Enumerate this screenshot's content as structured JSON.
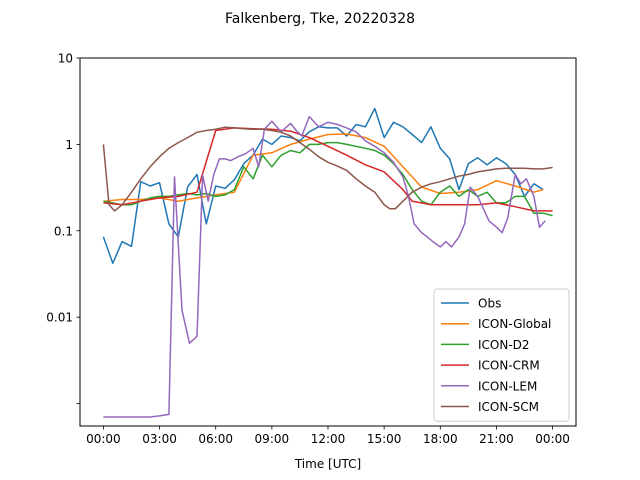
{
  "chart_data": {
    "type": "line",
    "title": "Falkenberg, Tke, 20220328",
    "xlabel": "Time [UTC]",
    "ylabel": "",
    "yscale": "log",
    "xlim_hours": [
      -1.25,
      25.25
    ],
    "ylim": [
      0.00055,
      10
    ],
    "x_ticks": [
      {
        "hour": 0,
        "label": "00:00"
      },
      {
        "hour": 3,
        "label": "03:00"
      },
      {
        "hour": 6,
        "label": "06:00"
      },
      {
        "hour": 9,
        "label": "09:00"
      },
      {
        "hour": 12,
        "label": "12:00"
      },
      {
        "hour": 15,
        "label": "15:00"
      },
      {
        "hour": 18,
        "label": "18:00"
      },
      {
        "hour": 21,
        "label": "21:00"
      },
      {
        "hour": 24,
        "label": "00:00"
      }
    ],
    "y_ticks": [
      {
        "value": 0.001,
        "label": ""
      },
      {
        "value": 0.01,
        "label": "0.01"
      },
      {
        "value": 0.1,
        "label": "0.1"
      },
      {
        "value": 1,
        "label": "1"
      },
      {
        "value": 10,
        "label": "10"
      }
    ],
    "grid": false,
    "legend_position": "lower-right",
    "series": [
      {
        "name": "Obs",
        "color": "#1f77b4",
        "x": [
          0,
          0.5,
          1,
          1.5,
          2,
          2.5,
          3,
          3.5,
          4,
          4.5,
          5,
          5.5,
          6,
          6.5,
          7,
          7.5,
          8,
          8.5,
          9,
          9.5,
          10,
          10.5,
          11,
          11.5,
          12,
          12.5,
          13,
          13.5,
          14,
          14.5,
          15,
          15.5,
          16,
          16.5,
          17,
          17.5,
          18,
          18.5,
          19,
          19.5,
          20,
          20.5,
          21,
          21.5,
          22,
          22.5,
          23,
          23.5
        ],
        "y": [
          0.085,
          0.042,
          0.075,
          0.066,
          0.37,
          0.33,
          0.36,
          0.12,
          0.085,
          0.32,
          0.45,
          0.12,
          0.33,
          0.31,
          0.39,
          0.6,
          0.75,
          1.15,
          1.0,
          1.25,
          1.2,
          1.1,
          1.4,
          1.6,
          1.55,
          1.55,
          1.25,
          1.7,
          1.6,
          2.6,
          1.2,
          1.8,
          1.6,
          1.3,
          1.05,
          1.6,
          0.9,
          0.68,
          0.3,
          0.6,
          0.7,
          0.58,
          0.7,
          0.6,
          0.45,
          0.25,
          0.35,
          0.3
        ]
      },
      {
        "name": "ICON-Global",
        "color": "#ff7f0e",
        "x": [
          0,
          1,
          2,
          3,
          4,
          5,
          6,
          7,
          8,
          9,
          10,
          11,
          12,
          13,
          14,
          15,
          16,
          17,
          18,
          19,
          20,
          21,
          22,
          23,
          23.5
        ],
        "y": [
          0.22,
          0.23,
          0.23,
          0.24,
          0.22,
          0.24,
          0.26,
          0.28,
          0.75,
          0.8,
          1.0,
          1.15,
          1.3,
          1.32,
          1.2,
          0.95,
          0.55,
          0.32,
          0.27,
          0.28,
          0.3,
          0.38,
          0.33,
          0.28,
          0.3
        ]
      },
      {
        "name": "ICON-D2",
        "color": "#2ca02c",
        "x": [
          0,
          0.5,
          1,
          1.5,
          2,
          2.5,
          3,
          3.5,
          4,
          4.5,
          5,
          5.5,
          6,
          6.5,
          7,
          7.5,
          8,
          8.5,
          9,
          9.5,
          10,
          10.5,
          11,
          11.5,
          12,
          12.5,
          13,
          13.5,
          14,
          14.5,
          15,
          15.5,
          16,
          16.5,
          17,
          17.5,
          18,
          18.5,
          19,
          19.5,
          20,
          20.5,
          21,
          21.5,
          22,
          22.5,
          23,
          23.5,
          24
        ],
        "y": [
          0.22,
          0.21,
          0.2,
          0.2,
          0.22,
          0.24,
          0.25,
          0.25,
          0.26,
          0.27,
          0.26,
          0.27,
          0.25,
          0.26,
          0.3,
          0.55,
          0.4,
          0.75,
          0.55,
          0.75,
          0.85,
          0.8,
          1.0,
          1.0,
          1.05,
          1.05,
          1.0,
          0.95,
          0.9,
          0.85,
          0.75,
          0.6,
          0.45,
          0.3,
          0.22,
          0.2,
          0.28,
          0.33,
          0.25,
          0.3,
          0.25,
          0.28,
          0.21,
          0.21,
          0.25,
          0.25,
          0.16,
          0.16,
          0.15
        ]
      },
      {
        "name": "ICON-CRM",
        "color": "#d62728",
        "x": [
          0,
          1,
          2,
          3,
          4,
          5,
          6,
          7,
          8,
          9,
          10,
          11,
          12,
          13,
          14,
          15,
          16,
          16.5,
          17,
          17.5,
          18,
          19,
          20,
          21,
          22,
          23,
          24
        ],
        "y": [
          0.21,
          0.2,
          0.22,
          0.24,
          0.25,
          0.28,
          1.45,
          1.55,
          1.52,
          1.5,
          1.42,
          1.2,
          0.95,
          0.75,
          0.58,
          0.48,
          0.3,
          0.22,
          0.21,
          0.2,
          0.2,
          0.2,
          0.2,
          0.21,
          0.19,
          0.17,
          0.17
        ]
      },
      {
        "name": "ICON-LEM",
        "color": "#9467bd",
        "x": [
          0,
          0.5,
          1,
          1.5,
          2,
          2.5,
          3,
          3.5,
          3.8,
          4.2,
          4.6,
          5,
          5.3,
          5.6,
          5.9,
          6.2,
          6.5,
          6.8,
          7.2,
          7.6,
          8,
          8.3,
          8.6,
          9,
          9.5,
          10,
          10.3,
          10.6,
          11,
          11.5,
          12,
          12.5,
          13,
          13.5,
          14,
          14.5,
          15,
          15.5,
          16,
          16.3,
          16.6,
          17,
          17.3,
          17.6,
          18,
          18.3,
          18.6,
          19,
          19.3,
          19.6,
          20,
          20.3,
          20.6,
          21,
          21.3,
          21.6,
          22,
          22.3,
          22.6,
          23,
          23.3,
          23.6
        ],
        "y": [
          0.0007,
          0.0007,
          0.0007,
          0.0007,
          0.0007,
          0.0007,
          0.00072,
          0.00075,
          0.42,
          0.012,
          0.005,
          0.006,
          0.44,
          0.22,
          0.45,
          0.68,
          0.68,
          0.65,
          0.72,
          0.78,
          0.9,
          0.55,
          1.5,
          1.85,
          1.4,
          1.75,
          1.45,
          1.25,
          2.1,
          1.6,
          1.8,
          1.7,
          1.55,
          1.4,
          1.1,
          0.95,
          0.8,
          0.62,
          0.42,
          0.25,
          0.12,
          0.095,
          0.085,
          0.075,
          0.065,
          0.075,
          0.065,
          0.085,
          0.12,
          0.32,
          0.25,
          0.18,
          0.13,
          0.11,
          0.095,
          0.14,
          0.45,
          0.35,
          0.4,
          0.25,
          0.11,
          0.13
        ]
      },
      {
        "name": "ICON-SCM",
        "color": "#8c564b",
        "x": [
          0,
          0.3,
          0.6,
          1,
          1.5,
          2,
          2.5,
          3,
          3.5,
          4,
          4.5,
          5,
          5.5,
          6,
          6.5,
          7,
          7.5,
          8,
          8.5,
          9,
          9.5,
          10,
          10.5,
          11,
          11.5,
          12,
          12.5,
          13,
          13.5,
          14,
          14.5,
          15,
          15.3,
          15.6,
          16,
          16.5,
          17,
          17.5,
          18,
          18.5,
          19,
          19.5,
          20,
          20.5,
          21,
          21.5,
          22,
          22.5,
          23,
          23.5,
          24
        ],
        "y": [
          1.0,
          0.2,
          0.17,
          0.2,
          0.28,
          0.4,
          0.55,
          0.72,
          0.9,
          1.05,
          1.2,
          1.38,
          1.45,
          1.5,
          1.58,
          1.55,
          1.52,
          1.5,
          1.5,
          1.45,
          1.38,
          1.25,
          1.05,
          0.88,
          0.72,
          0.62,
          0.56,
          0.5,
          0.4,
          0.33,
          0.28,
          0.2,
          0.18,
          0.18,
          0.22,
          0.28,
          0.32,
          0.35,
          0.37,
          0.4,
          0.43,
          0.45,
          0.48,
          0.5,
          0.52,
          0.53,
          0.53,
          0.53,
          0.52,
          0.52,
          0.54
        ]
      }
    ]
  }
}
